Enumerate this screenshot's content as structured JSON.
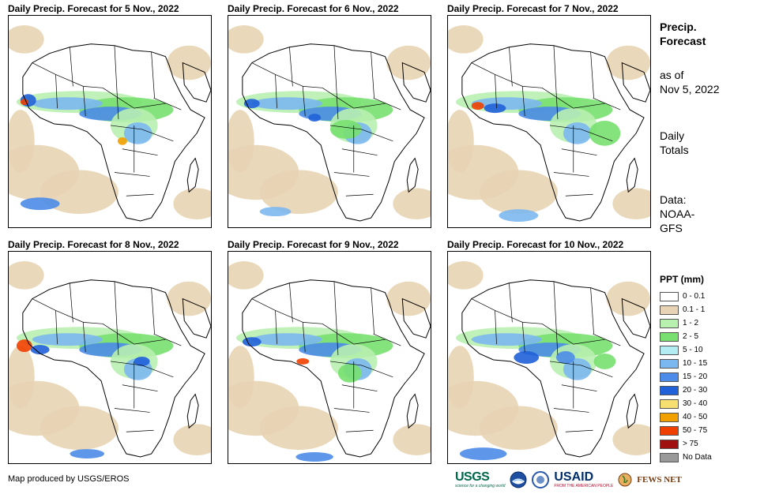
{
  "panels": [
    {
      "title": "Daily Precip. Forecast for 5 Nov., 2022"
    },
    {
      "title": "Daily Precip. Forecast for 6 Nov., 2022"
    },
    {
      "title": "Daily Precip. Forecast for 7 Nov., 2022"
    },
    {
      "title": "Daily Precip. Forecast for 8 Nov., 2022"
    },
    {
      "title": "Daily Precip. Forecast for 9 Nov., 2022"
    },
    {
      "title": "Daily Precip. Forecast for 10 Nov., 2022"
    }
  ],
  "sidebar": {
    "title_line1": "Precip.",
    "title_line2": "Forecast",
    "asof_line1": "as of",
    "asof_line2": "Nov 5, 2022",
    "totals_line1": "Daily",
    "totals_line2": "Totals",
    "data_line1": "Data:",
    "data_line2": "NOAA-",
    "data_line3": "GFS"
  },
  "legend": {
    "title": "PPT (mm)",
    "items": [
      {
        "label": "0 - 0.1",
        "color": "#ffffff"
      },
      {
        "label": "0.1 - 1",
        "color": "#e8d4b4"
      },
      {
        "label": "1 - 2",
        "color": "#b8f0b0"
      },
      {
        "label": "2 - 5",
        "color": "#78e070"
      },
      {
        "label": "5 - 10",
        "color": "#b4ecf4"
      },
      {
        "label": "10 - 15",
        "color": "#7cb8f0"
      },
      {
        "label": "15 - 20",
        "color": "#4c8ce8"
      },
      {
        "label": "20 - 30",
        "color": "#2060d8"
      },
      {
        "label": "30 - 40",
        "color": "#f8e070"
      },
      {
        "label": "40 - 50",
        "color": "#f0a000"
      },
      {
        "label": "50 - 75",
        "color": "#f04000"
      },
      {
        "label": "> 75",
        "color": "#a01010"
      },
      {
        "label": "No Data",
        "color": "#999999"
      }
    ]
  },
  "footer": {
    "credit": "Map produced by USGS/EROS",
    "logos": {
      "usgs": "USGS",
      "usgs_tag": "science for a changing world",
      "usaid": "USAID",
      "usaid_tag": "FROM THE AMERICAN PEOPLE",
      "fews": "FEWS NET"
    }
  }
}
